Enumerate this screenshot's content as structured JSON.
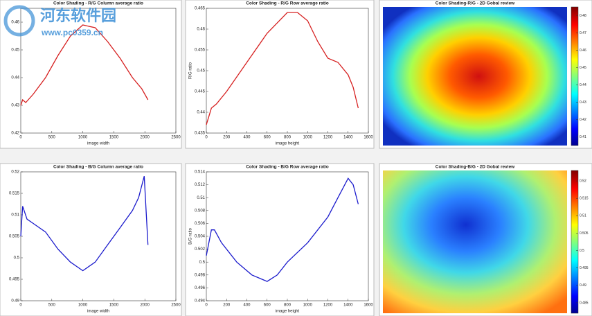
{
  "watermark": {
    "name": "河东软件园",
    "url": "www.pc0359.cn"
  },
  "chart_data": [
    {
      "type": "line",
      "title": "Color Shading - R/G Column average ratio",
      "xlabel": "image width",
      "x": [
        0,
        30,
        80,
        200,
        400,
        600,
        800,
        1000,
        1200,
        1400,
        1600,
        1800,
        1950,
        2050
      ],
      "values": [
        0.43,
        0.432,
        0.431,
        0.434,
        0.44,
        0.448,
        0.455,
        0.459,
        0.458,
        0.453,
        0.447,
        0.44,
        0.436,
        0.432
      ],
      "color": "#d62020",
      "xlim": [
        0,
        2500
      ],
      "xticks": [
        0,
        500,
        1000,
        1500,
        2000,
        2500
      ],
      "ylim": [
        0.42,
        0.465
      ],
      "yticks": [
        0.42,
        0.43,
        0.44,
        0.45,
        0.46
      ]
    },
    {
      "type": "line",
      "title": "Color Shading - R/G Row average ratio",
      "xlabel": "image height",
      "ylabel": "R/G ratio",
      "x": [
        0,
        50,
        100,
        200,
        400,
        600,
        800,
        900,
        1000,
        1100,
        1200,
        1300,
        1400,
        1450,
        1500
      ],
      "values": [
        0.437,
        0.441,
        0.442,
        0.445,
        0.452,
        0.459,
        0.464,
        0.464,
        0.462,
        0.457,
        0.453,
        0.452,
        0.449,
        0.446,
        0.441
      ],
      "color": "#d62020",
      "xlim": [
        0,
        1600
      ],
      "xticks": [
        0,
        200,
        400,
        600,
        800,
        1000,
        1200,
        1400,
        1600
      ],
      "ylim": [
        0.435,
        0.465
      ],
      "yticks": [
        0.435,
        0.44,
        0.445,
        0.45,
        0.455,
        0.46,
        0.465
      ]
    },
    {
      "type": "heatmap",
      "title": "Color Shading-R/G - 2D Gobal review",
      "pattern": "center-high",
      "clim": [
        0.405,
        0.485
      ],
      "cticks": [
        0.41,
        0.42,
        0.43,
        0.44,
        0.45,
        0.46,
        0.47,
        0.48
      ]
    },
    {
      "type": "line",
      "title": "Color Shading - B/G Column average ratio",
      "xlabel": "image width",
      "x": [
        0,
        30,
        100,
        200,
        400,
        600,
        800,
        1000,
        1200,
        1400,
        1600,
        1800,
        1900,
        1990,
        2050
      ],
      "values": [
        0.505,
        0.512,
        0.509,
        0.508,
        0.506,
        0.502,
        0.499,
        0.497,
        0.499,
        0.503,
        0.507,
        0.511,
        0.514,
        0.519,
        0.503
      ],
      "color": "#1a1acc",
      "xlim": [
        0,
        2500
      ],
      "xticks": [
        0,
        500,
        1000,
        1500,
        2000,
        2500
      ],
      "ylim": [
        0.49,
        0.52
      ],
      "yticks": [
        0.49,
        0.495,
        0.5,
        0.505,
        0.51,
        0.515,
        0.52
      ]
    },
    {
      "type": "line",
      "title": "Color Shading - B/G Row average ratio",
      "xlabel": "image height",
      "ylabel": "B/G ratio",
      "x": [
        0,
        50,
        80,
        150,
        300,
        450,
        600,
        700,
        800,
        1000,
        1200,
        1300,
        1400,
        1450,
        1500
      ],
      "values": [
        0.501,
        0.505,
        0.505,
        0.503,
        0.5,
        0.498,
        0.497,
        0.498,
        0.5,
        0.503,
        0.507,
        0.51,
        0.513,
        0.512,
        0.509
      ],
      "color": "#1a1acc",
      "xlim": [
        0,
        1600
      ],
      "xticks": [
        0,
        200,
        400,
        600,
        800,
        1000,
        1200,
        1400,
        1600
      ],
      "ylim": [
        0.494,
        0.514
      ],
      "yticks": [
        0.494,
        0.496,
        0.498,
        0.5,
        0.502,
        0.504,
        0.506,
        0.508,
        0.51,
        0.512,
        0.514
      ]
    },
    {
      "type": "heatmap",
      "title": "Color Shading-B/G - 2D Gobal review",
      "pattern": "center-low",
      "clim": [
        0.482,
        0.523
      ],
      "cticks": [
        0.485,
        0.49,
        0.495,
        0.5,
        0.505,
        0.51,
        0.515,
        0.52
      ]
    }
  ]
}
